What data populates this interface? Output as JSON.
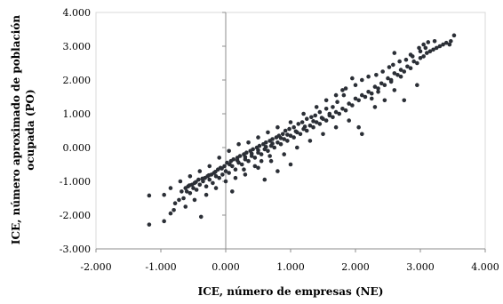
{
  "chart_data": {
    "type": "scatter",
    "xlabel": "ICE, número de empresas (NE)",
    "ylabel_lines": [
      "ICE, número aproximado de población",
      "ocupada (PO)"
    ],
    "xlim": [
      -2,
      4
    ],
    "ylim": [
      -3,
      4
    ],
    "x_ticks": [
      -2,
      -1,
      0,
      1,
      2,
      3,
      4
    ],
    "y_ticks": [
      -3,
      -2,
      -1,
      0,
      1,
      2,
      3,
      4
    ],
    "x_tick_labels": [
      "-2.000",
      "-1.000",
      "0.000",
      "1.000",
      "2.000",
      "3.000",
      "4.000"
    ],
    "y_tick_labels": [
      "-3.000",
      "-2.000",
      "-1.000",
      "0.000",
      "1.000",
      "2.000",
      "3.000",
      "4.000"
    ],
    "grid": false,
    "point_color": "#2b2f36",
    "points": [
      [
        -1.18,
        -2.28
      ],
      [
        -1.18,
        -1.42
      ],
      [
        -0.95,
        -2.18
      ],
      [
        -0.85,
        -1.95
      ],
      [
        -0.8,
        -1.85
      ],
      [
        -0.72,
        -1.55
      ],
      [
        -0.65,
        -1.5
      ],
      [
        -0.6,
        -1.3
      ],
      [
        -0.55,
        -1.35
      ],
      [
        -0.5,
        -1.2
      ],
      [
        -0.45,
        -1.25
      ],
      [
        -0.4,
        -1.1
      ],
      [
        -0.38,
        -2.05
      ],
      [
        -0.35,
        -1.0
      ],
      [
        -0.3,
        -1.15
      ],
      [
        -0.25,
        -0.95
      ],
      [
        -0.2,
        -1.05
      ],
      [
        -0.15,
        -0.85
      ],
      [
        -0.1,
        -0.9
      ],
      [
        -0.05,
        -0.8
      ],
      [
        0.0,
        -0.7
      ],
      [
        0.05,
        -0.75
      ],
      [
        0.1,
        -0.55
      ],
      [
        0.15,
        -0.65
      ],
      [
        0.2,
        -0.45
      ],
      [
        0.25,
        -0.5
      ],
      [
        0.3,
        -0.35
      ],
      [
        0.35,
        -0.4
      ],
      [
        0.4,
        -0.25
      ],
      [
        0.45,
        -0.3
      ],
      [
        0.5,
        -0.15
      ],
      [
        0.55,
        -0.2
      ],
      [
        0.6,
        -0.05
      ],
      [
        0.65,
        -0.1
      ],
      [
        0.7,
        0.05
      ],
      [
        0.75,
        0.0
      ],
      [
        0.8,
        0.15
      ],
      [
        0.85,
        0.1
      ],
      [
        0.9,
        0.25
      ],
      [
        0.95,
        0.2
      ],
      [
        1.0,
        0.35
      ],
      [
        1.05,
        0.3
      ],
      [
        1.1,
        0.45
      ],
      [
        1.15,
        0.4
      ],
      [
        1.2,
        0.55
      ],
      [
        1.25,
        0.5
      ],
      [
        1.3,
        0.65
      ],
      [
        1.35,
        0.6
      ],
      [
        1.4,
        0.75
      ],
      [
        1.45,
        0.7
      ],
      [
        1.5,
        0.85
      ],
      [
        1.55,
        0.8
      ],
      [
        1.6,
        0.95
      ],
      [
        1.65,
        0.9
      ],
      [
        1.7,
        1.05
      ],
      [
        1.75,
        1.0
      ],
      [
        1.8,
        1.15
      ],
      [
        1.85,
        1.1
      ],
      [
        1.9,
        1.3
      ],
      [
        1.95,
        1.25
      ],
      [
        2.0,
        1.45
      ],
      [
        2.05,
        1.4
      ],
      [
        2.1,
        1.55
      ],
      [
        2.15,
        1.5
      ],
      [
        2.2,
        1.65
      ],
      [
        2.25,
        1.6
      ],
      [
        2.3,
        1.8
      ],
      [
        2.35,
        1.75
      ],
      [
        2.4,
        1.9
      ],
      [
        2.45,
        1.85
      ],
      [
        2.5,
        2.05
      ],
      [
        2.55,
        2.0
      ],
      [
        2.6,
        2.2
      ],
      [
        2.65,
        2.15
      ],
      [
        2.7,
        2.3
      ],
      [
        2.75,
        2.25
      ],
      [
        2.8,
        2.4
      ],
      [
        2.85,
        2.35
      ],
      [
        2.9,
        2.55
      ],
      [
        2.95,
        2.5
      ],
      [
        3.0,
        2.65
      ],
      [
        3.05,
        2.7
      ],
      [
        3.1,
        2.8
      ],
      [
        3.15,
        2.85
      ],
      [
        3.2,
        2.9
      ],
      [
        3.25,
        2.95
      ],
      [
        3.3,
        3.0
      ],
      [
        3.35,
        3.05
      ],
      [
        3.4,
        3.1
      ],
      [
        3.45,
        3.05
      ],
      [
        3.52,
        3.32
      ],
      [
        3.47,
        3.15
      ],
      [
        3.05,
        3.05
      ],
      [
        3.12,
        3.12
      ],
      [
        3.22,
        3.15
      ],
      [
        2.98,
        2.95
      ],
      [
        2.85,
        2.75
      ],
      [
        2.6,
        2.8
      ],
      [
        2.52,
        2.38
      ],
      [
        2.42,
        2.25
      ],
      [
        2.32,
        2.15
      ],
      [
        2.2,
        2.1
      ],
      [
        2.1,
        2.0
      ],
      [
        2.0,
        1.85
      ],
      [
        1.95,
        2.05
      ],
      [
        1.85,
        1.75
      ],
      [
        1.82,
        1.55
      ],
      [
        1.72,
        1.35
      ],
      [
        1.65,
        1.2
      ],
      [
        1.55,
        1.15
      ],
      [
        1.45,
        1.05
      ],
      [
        1.38,
        0.95
      ],
      [
        1.32,
        0.9
      ],
      [
        1.25,
        0.85
      ],
      [
        1.18,
        0.75
      ],
      [
        1.12,
        0.7
      ],
      [
        1.05,
        0.6
      ],
      [
        0.98,
        0.55
      ],
      [
        0.92,
        0.5
      ],
      [
        0.88,
        0.4
      ],
      [
        0.82,
        0.35
      ],
      [
        0.78,
        0.3
      ],
      [
        0.72,
        0.25
      ],
      [
        0.68,
        0.2
      ],
      [
        0.62,
        0.15
      ],
      [
        0.58,
        0.1
      ],
      [
        0.52,
        0.05
      ],
      [
        0.48,
        0.0
      ],
      [
        0.42,
        -0.05
      ],
      [
        0.38,
        -0.1
      ],
      [
        0.32,
        -0.15
      ],
      [
        0.28,
        -0.2
      ],
      [
        0.22,
        -0.25
      ],
      [
        0.18,
        -0.3
      ],
      [
        0.12,
        -0.35
      ],
      [
        0.08,
        -0.4
      ],
      [
        0.02,
        -0.45
      ],
      [
        -0.02,
        -0.55
      ],
      [
        -0.08,
        -0.6
      ],
      [
        -0.12,
        -0.65
      ],
      [
        -0.18,
        -0.75
      ],
      [
        -0.22,
        -0.8
      ],
      [
        -0.28,
        -0.85
      ],
      [
        -0.32,
        -0.9
      ],
      [
        -0.42,
        -0.95
      ],
      [
        -0.48,
        -1.05
      ],
      [
        -0.52,
        -1.1
      ],
      [
        -0.58,
        -1.15
      ],
      [
        -0.62,
        -1.2
      ],
      [
        -0.68,
        -1.3
      ],
      [
        0.1,
        -1.3
      ],
      [
        0.3,
        -0.8
      ],
      [
        0.5,
        -0.6
      ],
      [
        0.7,
        -0.4
      ],
      [
        0.9,
        -0.2
      ],
      [
        1.1,
        0.0
      ],
      [
        1.3,
        0.2
      ],
      [
        1.5,
        0.4
      ],
      [
        1.7,
        0.6
      ],
      [
        1.9,
        0.8
      ],
      [
        2.1,
        0.4
      ],
      [
        2.05,
        0.6
      ],
      [
        2.3,
        1.2
      ],
      [
        2.45,
        1.4
      ],
      [
        2.6,
        1.7
      ],
      [
        2.75,
        1.4
      ],
      [
        2.95,
        1.85
      ],
      [
        1.0,
        -0.5
      ],
      [
        0.8,
        -0.7
      ],
      [
        0.6,
        -0.95
      ],
      [
        -0.1,
        -0.3
      ],
      [
        0.05,
        -0.1
      ],
      [
        0.2,
        0.1
      ],
      [
        0.35,
        0.15
      ],
      [
        0.5,
        0.3
      ],
      [
        0.65,
        0.45
      ],
      [
        0.8,
        0.6
      ],
      [
        1.0,
        0.75
      ],
      [
        1.2,
        1.0
      ],
      [
        1.4,
        1.2
      ],
      [
        1.55,
        1.4
      ],
      [
        1.7,
        1.55
      ],
      [
        1.8,
        1.7
      ],
      [
        -0.4,
        -0.7
      ],
      [
        -0.25,
        -0.55
      ],
      [
        -0.55,
        -0.85
      ],
      [
        -0.7,
        -1.0
      ],
      [
        -0.85,
        -1.2
      ],
      [
        -0.95,
        -1.4
      ],
      [
        -0.78,
        -1.65
      ],
      [
        -0.62,
        -1.75
      ],
      [
        -0.48,
        -1.55
      ],
      [
        -0.3,
        -1.4
      ],
      [
        -0.15,
        -1.2
      ],
      [
        0.0,
        -1.0
      ],
      [
        0.15,
        -0.9
      ],
      [
        0.28,
        -0.65
      ],
      [
        0.45,
        -0.55
      ],
      [
        0.55,
        -0.4
      ],
      [
        0.68,
        -0.25
      ],
      [
        2.58,
        2.45
      ],
      [
        2.68,
        2.55
      ],
      [
        2.78,
        2.6
      ],
      [
        2.88,
        2.7
      ],
      [
        2.7,
        2.1
      ],
      [
        2.55,
        1.95
      ],
      [
        2.35,
        1.65
      ],
      [
        2.25,
        1.45
      ],
      [
        3.0,
        2.85
      ],
      [
        3.08,
        2.95
      ],
      [
        1.6,
        1.0
      ],
      [
        1.48,
        0.88
      ],
      [
        1.35,
        0.78
      ],
      [
        1.22,
        0.62
      ],
      [
        1.08,
        0.48
      ],
      [
        0.95,
        0.38
      ],
      [
        0.85,
        0.28
      ],
      [
        0.72,
        0.12
      ],
      [
        0.62,
        0.02
      ],
      [
        0.5,
        -0.08
      ],
      [
        0.4,
        -0.18
      ],
      [
        0.3,
        -0.28
      ],
      [
        0.18,
        -0.38
      ],
      [
        0.06,
        -0.5
      ],
      [
        -0.06,
        -0.62
      ],
      [
        -0.16,
        -0.72
      ],
      [
        -0.26,
        -0.82
      ],
      [
        -0.36,
        -0.92
      ],
      [
        -0.46,
        -1.02
      ],
      [
        -0.56,
        -1.12
      ]
    ]
  }
}
